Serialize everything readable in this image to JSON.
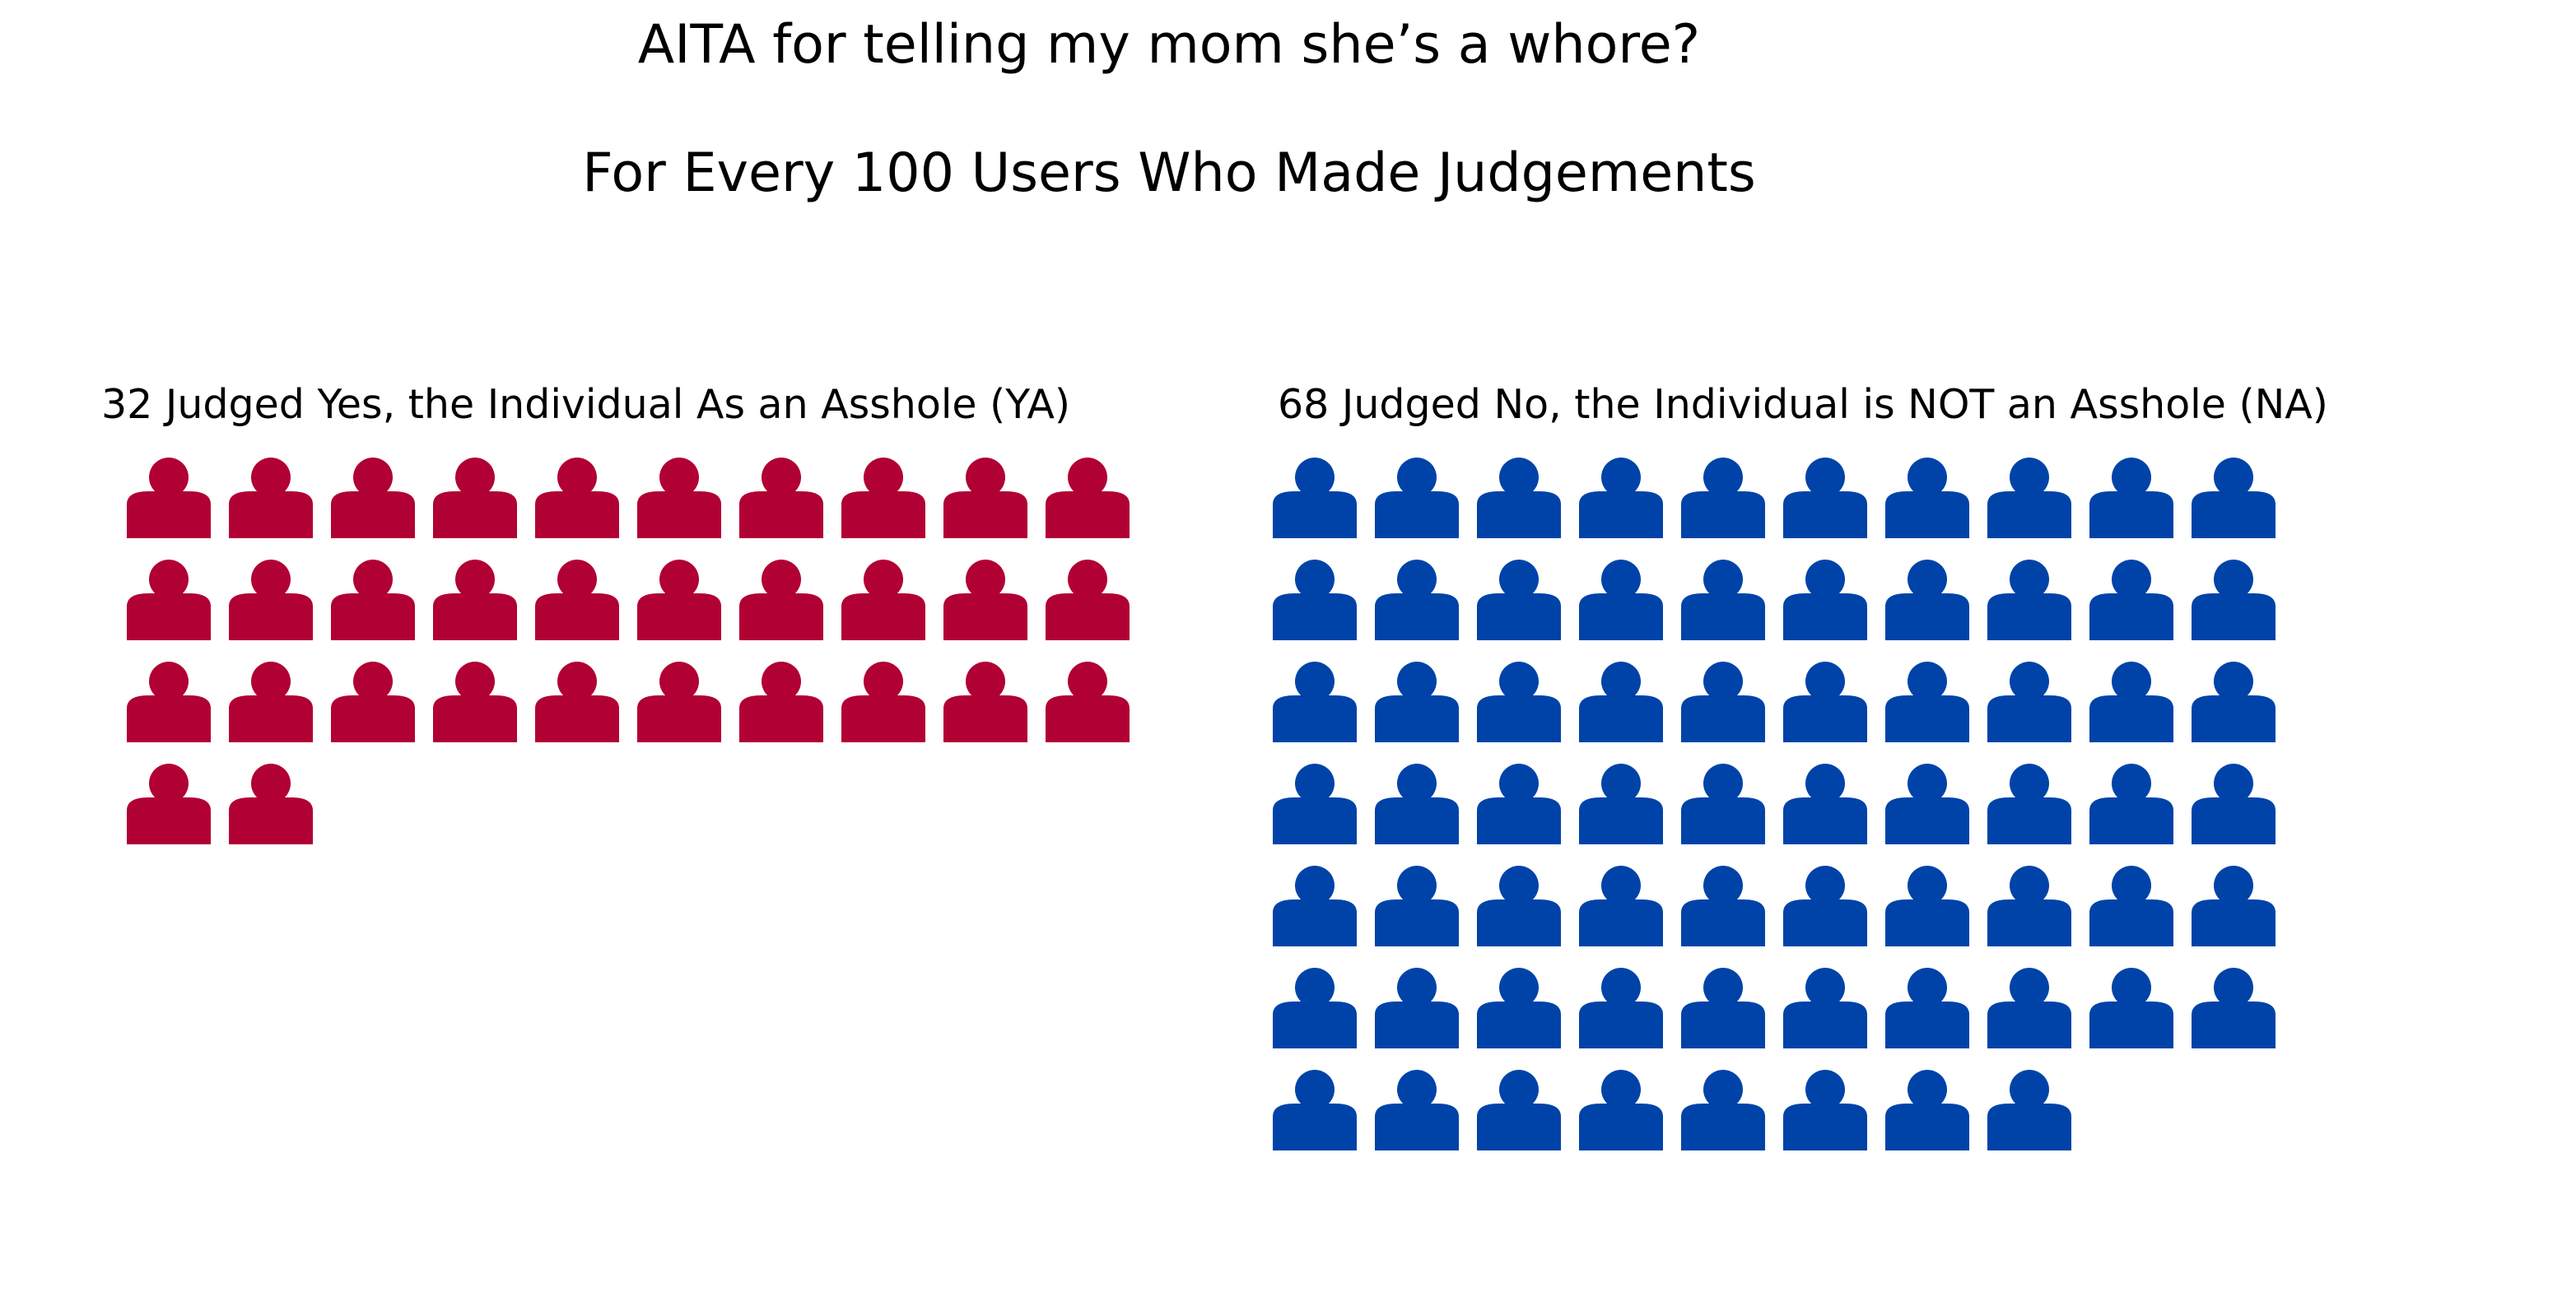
{
  "title": "AITA for telling my mom she’s a whore?",
  "subtitle": "For Every 100 Users Who Made Judgements",
  "chart_data": {
    "type": "pictogram",
    "unit": "per 100 users",
    "icons_per_row": 10,
    "icon_name": "person-icon",
    "panels": [
      {
        "label": "32 Judged Yes, the Individual As an Asshole (YA)",
        "code": "YA",
        "value": 32,
        "color": "#b10034"
      },
      {
        "label": "68 Judged No, the Individual is NOT an Asshole (NA)",
        "code": "NA",
        "value": 68,
        "color": "#0043a8"
      }
    ]
  }
}
